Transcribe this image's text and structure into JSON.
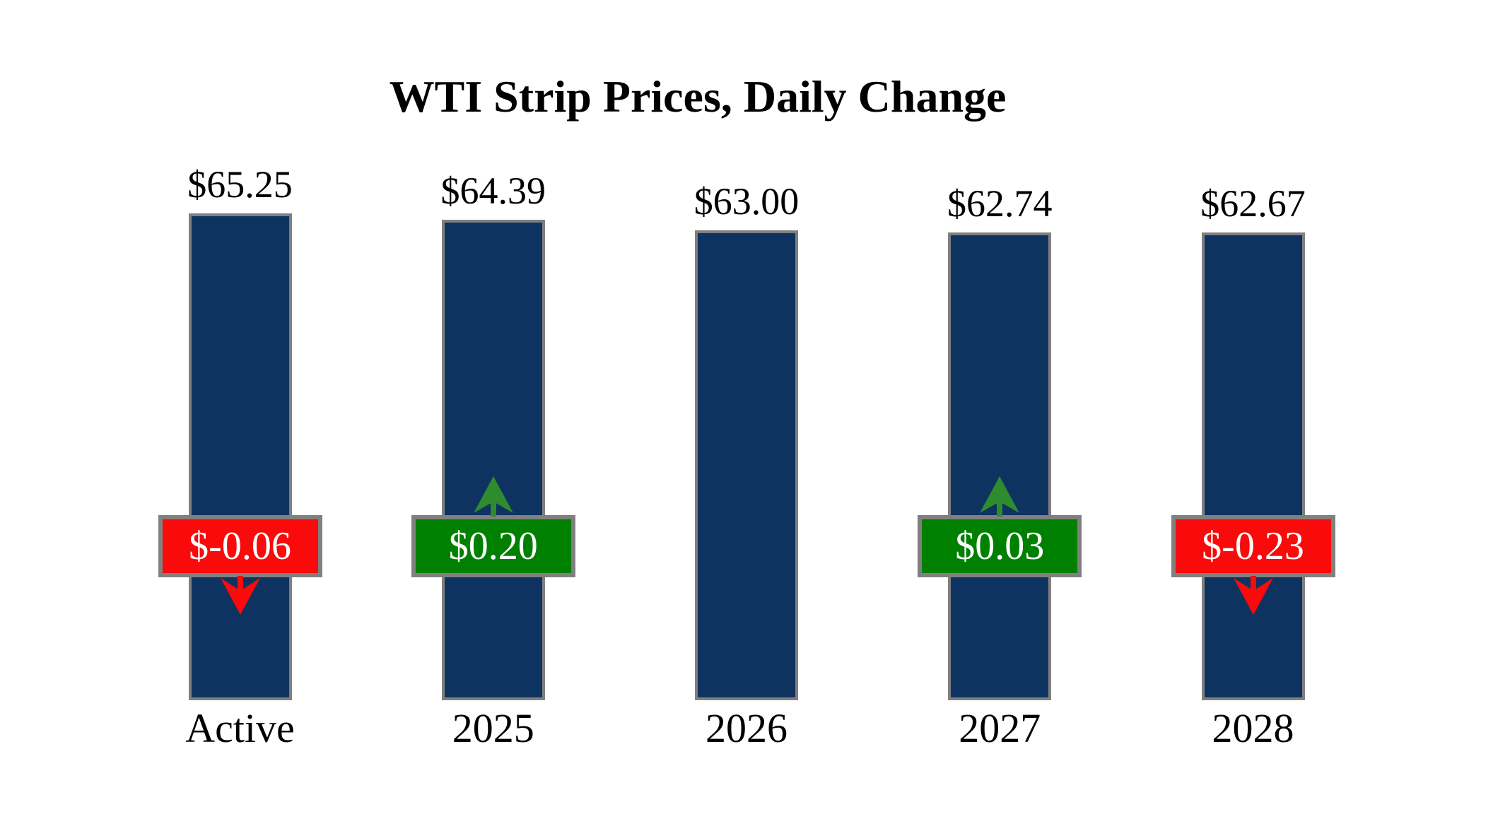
{
  "chart_data": {
    "type": "bar",
    "title": "WTI Strip Prices, Daily Change",
    "categories": [
      "Active",
      "2025",
      "2026",
      "2027",
      "2028"
    ],
    "values": [
      65.25,
      64.39,
      63.0,
      62.74,
      62.67
    ],
    "value_labels": [
      "$65.25",
      "$64.39",
      "$63.00",
      "$62.74",
      "$62.67"
    ],
    "daily_changes": [
      -0.06,
      0.2,
      null,
      0.03,
      -0.23
    ],
    "change_labels": [
      "$-0.06",
      "$0.20",
      null,
      "$0.03",
      "$-0.23"
    ],
    "change_directions": [
      "down",
      "up",
      null,
      "up",
      "down"
    ],
    "xlabel": "",
    "ylabel": "",
    "ylim": [
      0,
      68
    ],
    "axes_hidden": true,
    "grid": false,
    "legend": false,
    "colors": {
      "bar": "#0E3360",
      "bar_border": "#808080",
      "badge_border": "#808080",
      "positive_badge": "#008000",
      "negative_badge": "#FA0A0A",
      "arrow_up": "#2E8B2E",
      "arrow_down": "#FA0A0A",
      "label_text": "#000000",
      "badge_text": "#FFFFFF",
      "background": "#FFFFFF"
    }
  }
}
